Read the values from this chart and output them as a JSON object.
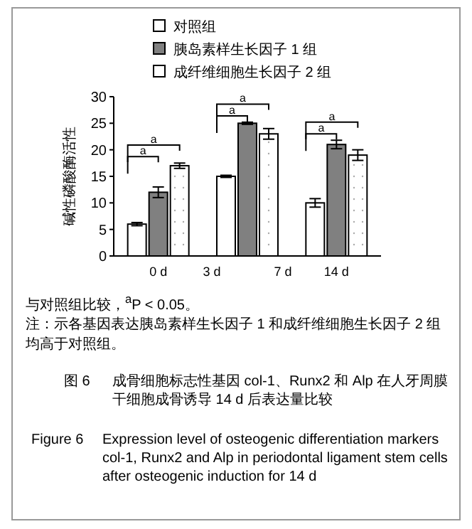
{
  "chart_data": {
    "type": "bar",
    "ylabel": "碱性磷酸酶活性",
    "categories": [
      "0 d",
      null,
      "14 d"
    ],
    "series": [
      {
        "name": "对照组",
        "color": "#ffffff",
        "values": [
          6,
          15,
          10
        ],
        "errors": [
          0.3,
          0.2,
          0.8
        ]
      },
      {
        "name": "胰岛素样生长因子 1 组",
        "color": "#808080",
        "values": [
          12,
          25,
          21
        ],
        "errors": [
          1,
          0.2,
          0.8
        ]
      },
      {
        "name": "成纤维细胞生长因子 2 组",
        "color": "#ffffff",
        "values": [
          17,
          23,
          19
        ],
        "errors": [
          0.5,
          1,
          1
        ]
      }
    ],
    "ylim": [
      0,
      30
    ],
    "yticks": [
      0,
      5,
      10,
      15,
      20,
      25,
      30
    ],
    "legend": "top",
    "grid": false,
    "annotations": [
      "3 d",
      "7 d",
      "a",
      "a",
      "a",
      "a",
      "a",
      "a",
      "与对照组比较，$^{a}$P < 0.05。",
      "注：示各基因表达胰岛素样生长因子 1 和成纤维细胞生长因子 2 组均高于对照组。",
      "图 6",
      "成骨细胞标志性基因 col-1、Runx2 和 Alp 在人牙周膜干细胞成骨诱导 14 d 后表达量比较",
      "Figure 6",
      "Expression level of osteogenic differentiation markers col-1, Runx2 and Alp in periodontal ligament stem cells after osteogenic induction for 14 d"
    ]
  }
}
